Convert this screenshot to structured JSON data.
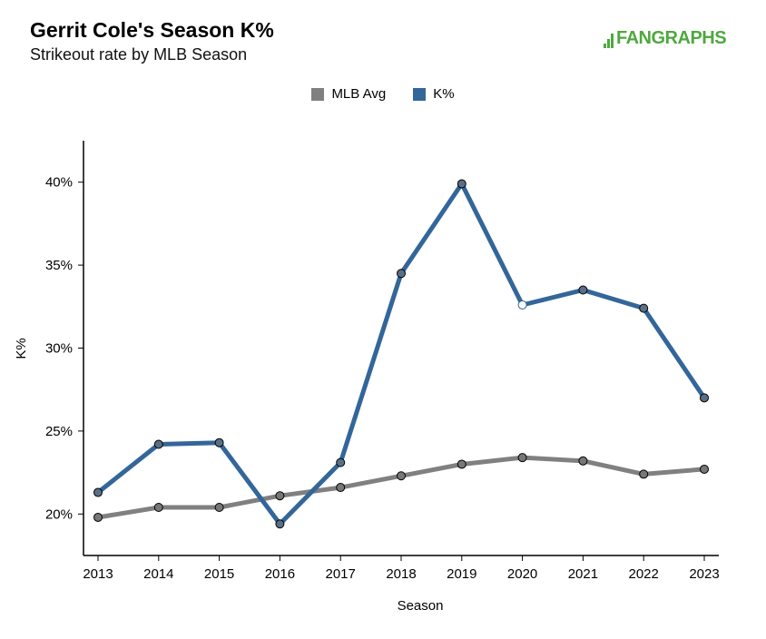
{
  "header": {
    "title": "Gerrit Cole's Season K%",
    "subtitle": "Strikeout rate by MLB Season",
    "logo_text": "FANGRAPHS"
  },
  "colors": {
    "mlb_avg": "#808080",
    "k_pct": "#336699",
    "logo": "#4fa83d"
  },
  "chart_data": {
    "type": "line",
    "xlabel": "Season",
    "ylabel": "K%",
    "x": [
      2013,
      2014,
      2015,
      2016,
      2017,
      2018,
      2019,
      2020,
      2021,
      2022,
      2023
    ],
    "ylim": [
      17.5,
      42.5
    ],
    "yticks": [
      "20%",
      "25%",
      "30%",
      "35%",
      "40%"
    ],
    "ytick_values": [
      20,
      25,
      30,
      35,
      40
    ],
    "legend_position": "top-center",
    "grid": false,
    "series": [
      {
        "name": "MLB Avg",
        "color": "#808080",
        "values": [
          19.8,
          20.4,
          20.4,
          21.1,
          21.6,
          22.3,
          23.0,
          23.4,
          23.2,
          22.4,
          22.7
        ]
      },
      {
        "name": "K%",
        "color": "#336699",
        "values": [
          21.3,
          24.2,
          24.3,
          19.4,
          23.1,
          34.5,
          39.9,
          32.6,
          33.5,
          32.4,
          27.0
        ]
      }
    ],
    "hollow_point": {
      "series": "K%",
      "x": 2020
    }
  }
}
